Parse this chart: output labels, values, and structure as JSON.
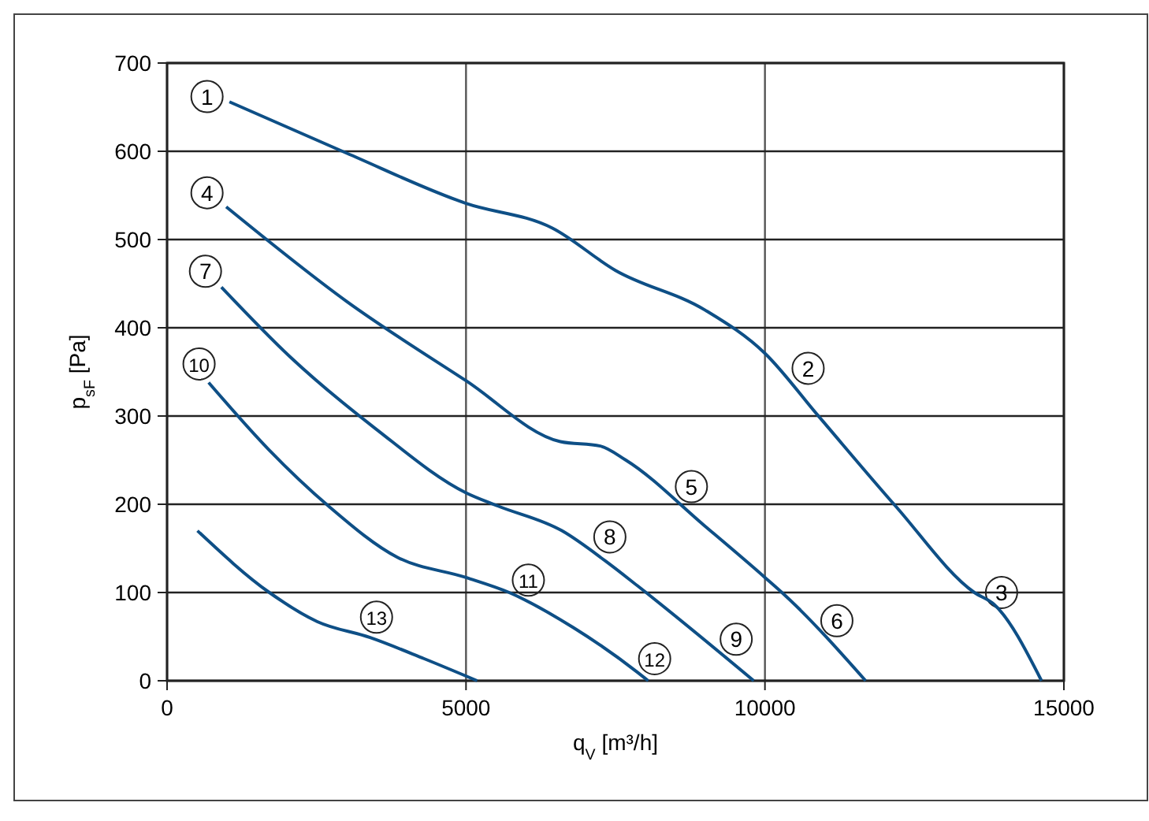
{
  "chart_data": {
    "type": "line",
    "xlabel": "q$_{V}$ [m³/h]",
    "ylabel": "p$_{sF}$ [Pa]",
    "xlim": [
      0,
      15000
    ],
    "ylim": [
      0,
      700
    ],
    "xticks": [
      0,
      5000,
      10000,
      15000
    ],
    "yticks": [
      0,
      100,
      200,
      300,
      400,
      500,
      600,
      700
    ],
    "grid": true,
    "line_style": "solid",
    "series": [
      {
        "color": "#0e4f86",
        "x": [
          1043,
          3000,
          5000,
          6444,
          7500,
          9000,
          10000,
          10882,
          12184,
          13503,
          13824,
          14626
        ],
        "values": [
          656,
          598,
          541,
          513,
          465,
          420,
          371,
          301,
          198,
          100,
          87,
          0
        ]
      },
      {
        "color": "#0e4f86",
        "x": [
          989,
          3000,
          5000,
          6578,
          7246,
          7674,
          9000,
          10000,
          10348,
          11684
        ],
        "values": [
          537,
          430,
          340,
          271,
          266,
          250,
          175,
          117,
          96,
          0
        ]
      },
      {
        "color": "#0e4f86",
        "x": [
          909,
          2059,
          3500,
          5000,
          5535,
          6604,
          7326,
          7861,
          9813
        ],
        "values": [
          446,
          367,
          285,
          213,
          198,
          170,
          136,
          108,
          0
        ]
      },
      {
        "color": "#0e4f86",
        "x": [
          695,
          1700,
          2700,
          3850,
          5000,
          5722,
          6800,
          7861,
          8048
        ],
        "values": [
          338,
          262,
          198,
          140,
          117,
          100,
          60,
          10,
          0
        ]
      },
      {
        "color": "#0e4f86",
        "x": [
          508,
          1711,
          2513,
          3396,
          4300,
          5187
        ],
        "values": [
          170,
          100,
          67,
          49,
          25,
          0
        ]
      }
    ],
    "annotations": [
      {
        "text": "1",
        "x": 668,
        "y": 662
      },
      {
        "text": "2",
        "x": 10722,
        "y": 354
      },
      {
        "text": "3",
        "x": 13957,
        "y": 100
      },
      {
        "text": "4",
        "x": 668,
        "y": 553
      },
      {
        "text": "5",
        "x": 8770,
        "y": 220
      },
      {
        "text": "6",
        "x": 11203,
        "y": 68
      },
      {
        "text": "7",
        "x": 642,
        "y": 464
      },
      {
        "text": "8",
        "x": 7406,
        "y": 163
      },
      {
        "text": "9",
        "x": 9519,
        "y": 47
      },
      {
        "text": "10",
        "x": 535,
        "y": 359
      },
      {
        "text": "11",
        "x": 6043,
        "y": 114
      },
      {
        "text": "12",
        "x": 8155,
        "y": 25
      },
      {
        "text": "13",
        "x": 3503,
        "y": 72
      }
    ]
  }
}
